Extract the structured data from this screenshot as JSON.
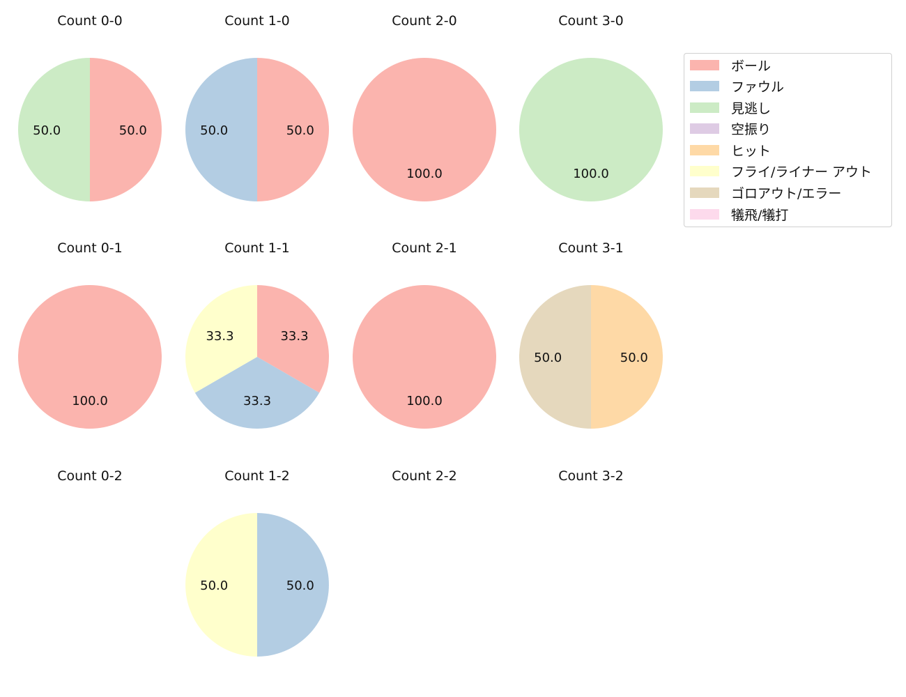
{
  "chart_data": {
    "type": "pie",
    "layout": {
      "rows": 3,
      "cols": 4,
      "legend_position": "upper right"
    },
    "categories": [
      "ボール",
      "ファウル",
      "見逃し",
      "空振り",
      "ヒット",
      "フライ/ライナー アウト",
      "ゴロアウト/エラー",
      "犠飛/犠打"
    ],
    "colors": [
      "#fbb4ae",
      "#b3cde3",
      "#ccebc5",
      "#decbe4",
      "#fed9a6",
      "#ffffcc",
      "#e5d8bd",
      "#fddaec"
    ],
    "subplots": [
      {
        "title": "Count 0-0",
        "row": 0,
        "col": 0,
        "slices": [
          {
            "category": "ボール",
            "value": 50.0
          },
          {
            "category": "見逃し",
            "value": 50.0
          }
        ]
      },
      {
        "title": "Count 1-0",
        "row": 0,
        "col": 1,
        "slices": [
          {
            "category": "ボール",
            "value": 50.0
          },
          {
            "category": "ファウル",
            "value": 50.0
          }
        ]
      },
      {
        "title": "Count 2-0",
        "row": 0,
        "col": 2,
        "slices": [
          {
            "category": "ボール",
            "value": 100.0
          }
        ]
      },
      {
        "title": "Count 3-0",
        "row": 0,
        "col": 3,
        "slices": [
          {
            "category": "見逃し",
            "value": 100.0
          }
        ]
      },
      {
        "title": "Count 0-1",
        "row": 1,
        "col": 0,
        "slices": [
          {
            "category": "ボール",
            "value": 100.0
          }
        ]
      },
      {
        "title": "Count 1-1",
        "row": 1,
        "col": 1,
        "slices": [
          {
            "category": "ボール",
            "value": 33.3
          },
          {
            "category": "ファウル",
            "value": 33.3
          },
          {
            "category": "フライ/ライナー アウト",
            "value": 33.3
          }
        ]
      },
      {
        "title": "Count 2-1",
        "row": 1,
        "col": 2,
        "slices": [
          {
            "category": "ボール",
            "value": 100.0
          }
        ]
      },
      {
        "title": "Count 3-1",
        "row": 1,
        "col": 3,
        "slices": [
          {
            "category": "ヒット",
            "value": 50.0
          },
          {
            "category": "ゴロアウト/エラー",
            "value": 50.0
          }
        ]
      },
      {
        "title": "Count 0-2",
        "row": 2,
        "col": 0,
        "slices": []
      },
      {
        "title": "Count 1-2",
        "row": 2,
        "col": 1,
        "slices": [
          {
            "category": "ファウル",
            "value": 50.0
          },
          {
            "category": "フライ/ライナー アウト",
            "value": 50.0
          }
        ]
      },
      {
        "title": "Count 2-2",
        "row": 2,
        "col": 2,
        "slices": []
      },
      {
        "title": "Count 3-2",
        "row": 2,
        "col": 3,
        "slices": []
      }
    ]
  },
  "legend": {
    "items": [
      {
        "label": "ボール",
        "color": "#fbb4ae"
      },
      {
        "label": "ファウル",
        "color": "#b3cde3"
      },
      {
        "label": "見逃し",
        "color": "#ccebc5"
      },
      {
        "label": "空振り",
        "color": "#decbe4"
      },
      {
        "label": "ヒット",
        "color": "#fed9a6"
      },
      {
        "label": "フライ/ライナー アウト",
        "color": "#ffffcc"
      },
      {
        "label": "ゴロアウト/エラー",
        "color": "#e5d8bd"
      },
      {
        "label": "犠飛/犠打",
        "color": "#fddaec"
      }
    ]
  }
}
